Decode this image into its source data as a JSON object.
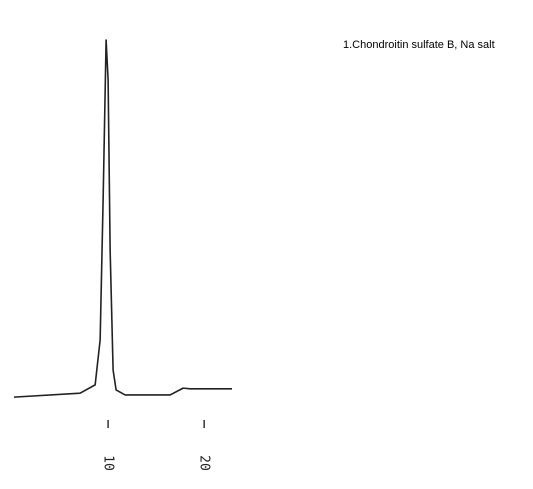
{
  "chart_data": {
    "type": "line",
    "annotations": [
      "1.Chondroitin sulfate B, Na salt"
    ],
    "x": [
      0.2,
      7.08,
      8.65,
      9.17,
      9.48,
      9.79,
      10.0,
      10.21,
      10.52,
      10.83,
      11.77,
      16.46,
      17.81,
      18.54,
      22.9
    ],
    "series": [
      {
        "color": "#222222",
        "values": [
          0.8,
          1.9,
          4.2,
          16.7,
          55.6,
          100,
          88.9,
          41.7,
          8.3,
          2.8,
          1.4,
          1.4,
          3.3,
          3.1,
          3.1
        ]
      }
    ],
    "xlim": [
      0.2,
      22.9
    ],
    "ylim": [
      0,
      100
    ],
    "xticks": [
      10,
      20
    ]
  }
}
